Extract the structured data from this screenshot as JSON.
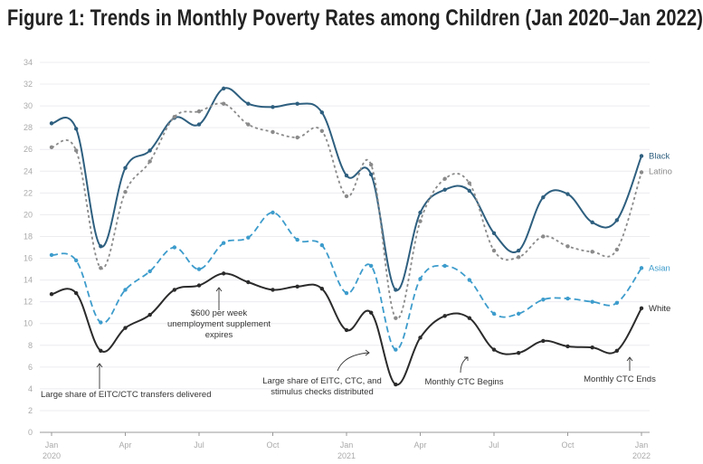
{
  "chart_data": {
    "type": "line",
    "title": "Figure 1: Trends in Monthly Poverty Rates among Children (Jan 2020–Jan 2022)",
    "xlabel": "",
    "ylabel": "",
    "ylim": [
      0,
      34
    ],
    "yticks": [
      "0",
      "2",
      "4",
      "6",
      "8",
      "10",
      "12",
      "14",
      "16",
      "18",
      "20",
      "22",
      "24",
      "26",
      "28",
      "30",
      "32",
      "34"
    ],
    "grid": true,
    "legend": "inline-right",
    "x": [
      "2020-01",
      "2020-02",
      "2020-03",
      "2020-04",
      "2020-05",
      "2020-06",
      "2020-07",
      "2020-08",
      "2020-09",
      "2020-10",
      "2020-11",
      "2020-12",
      "2021-01",
      "2021-02",
      "2021-03",
      "2021-04",
      "2021-05",
      "2021-06",
      "2021-07",
      "2021-08",
      "2021-09",
      "2021-10",
      "2021-11",
      "2021-12",
      "2022-01"
    ],
    "xticks": [
      {
        "month": 0,
        "label": "Jan",
        "year": "2020"
      },
      {
        "month": 3,
        "label": "Apr",
        "year": ""
      },
      {
        "month": 6,
        "label": "Jul",
        "year": ""
      },
      {
        "month": 9,
        "label": "Oct",
        "year": ""
      },
      {
        "month": 12,
        "label": "Jan",
        "year": "2021"
      },
      {
        "month": 15,
        "label": "Apr",
        "year": ""
      },
      {
        "month": 18,
        "label": "Jul",
        "year": ""
      },
      {
        "month": 21,
        "label": "Oct",
        "year": ""
      },
      {
        "month": 24,
        "label": "Jan",
        "year": "2022"
      }
    ],
    "series": [
      {
        "name": "Black",
        "color": "#2e5f7f",
        "style": "solid",
        "values": [
          28.4,
          27.9,
          17.1,
          24.3,
          25.9,
          28.9,
          28.3,
          31.6,
          30.2,
          29.9,
          30.2,
          29.4,
          23.6,
          23.7,
          13.1,
          20.2,
          22.3,
          22.2,
          18.3,
          16.7,
          21.6,
          21.9,
          19.3,
          19.5,
          25.4
        ]
      },
      {
        "name": "Latino",
        "color": "#8a8a8a",
        "style": "dotted",
        "values": [
          26.2,
          25.9,
          15.1,
          22.1,
          24.9,
          29.0,
          29.5,
          30.2,
          28.3,
          27.6,
          27.1,
          27.7,
          21.7,
          24.6,
          10.5,
          19.4,
          23.3,
          22.9,
          16.7,
          16.1,
          18.0,
          17.1,
          16.6,
          16.8,
          23.9
        ]
      },
      {
        "name": "Asian",
        "color": "#3d9ccc",
        "style": "dashed",
        "values": [
          16.3,
          15.8,
          10.1,
          13.1,
          14.8,
          17.0,
          15.0,
          17.4,
          17.9,
          20.2,
          17.7,
          17.2,
          12.8,
          15.3,
          7.6,
          14.1,
          15.3,
          14.0,
          10.9,
          10.9,
          12.2,
          12.3,
          12.0,
          11.9,
          15.1
        ]
      },
      {
        "name": "White",
        "color": "#2b2b2b",
        "style": "solid",
        "values": [
          12.7,
          12.8,
          7.5,
          9.6,
          10.8,
          13.1,
          13.5,
          14.6,
          13.8,
          13.1,
          13.4,
          13.2,
          9.4,
          11.0,
          4.4,
          8.7,
          10.7,
          10.5,
          7.6,
          7.3,
          8.4,
          7.9,
          7.8,
          7.5,
          11.4
        ]
      }
    ],
    "annotations": [
      {
        "lines": [
          "Large share of EITC/CTC transfers delivered"
        ]
      },
      {
        "lines": [
          "$600 per week",
          "unemployment supplement",
          "expires"
        ]
      },
      {
        "lines": [
          "Large share of EITC, CTC, and",
          "stimulus checks distributed"
        ]
      },
      {
        "lines": [
          "Monthly CTC Begins"
        ]
      },
      {
        "lines": [
          "Monthly CTC Ends"
        ]
      }
    ]
  }
}
